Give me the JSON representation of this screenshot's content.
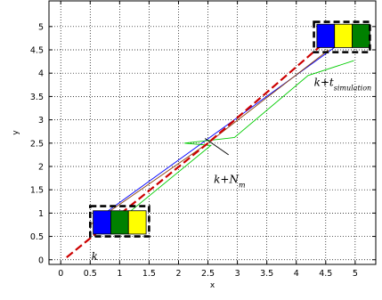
{
  "chart_data": {
    "type": "line",
    "xlabel": "x",
    "ylabel": "y",
    "xlim": [
      -0.2,
      5.35
    ],
    "ylim": [
      -0.1,
      5.55
    ],
    "x_ticks": [
      0,
      0.5,
      1,
      1.5,
      2,
      2.5,
      3,
      3.5,
      4,
      4.5,
      5
    ],
    "x_tick_labels": [
      "0",
      "0.5",
      "1",
      "1.5",
      "2",
      "2.5",
      "3",
      "3.5",
      "4",
      "4.5",
      "5"
    ],
    "y_ticks": [
      0,
      0.5,
      1,
      1.5,
      2,
      2.5,
      3,
      3.5,
      4,
      4.5,
      5
    ],
    "y_tick_labels": [
      "0",
      "0.5",
      "1",
      "1.5",
      "2",
      "2.5",
      "3",
      "3.5",
      "4",
      "4.5",
      "5"
    ],
    "grid": true,
    "series": [
      {
        "color": "#0000ff",
        "style": "solid",
        "points": [
          [
            0.75,
            1.0
          ],
          [
            2.4,
            2.5
          ],
          [
            4.9,
            4.78
          ]
        ]
      },
      {
        "color": "#00cc00",
        "style": "solid",
        "points": [
          [
            1.0,
            0.85
          ],
          [
            2.55,
            2.45
          ],
          [
            2.1,
            2.5
          ],
          [
            2.95,
            2.62
          ],
          [
            4.2,
            3.95
          ],
          [
            4.98,
            4.27
          ]
        ]
      },
      {
        "color": "#8b4513",
        "style": "solid",
        "points": [
          [
            0.5,
            0.75
          ],
          [
            2.5,
            2.5
          ],
          [
            4.55,
            4.5
          ]
        ]
      },
      {
        "color": "#cc0000",
        "style": "dashed",
        "points": [
          [
            0.1,
            0.05
          ],
          [
            2.5,
            2.5
          ],
          [
            4.75,
            4.95
          ]
        ]
      }
    ],
    "boxes": [
      {
        "x_range": [
          0.5,
          1.5
        ],
        "y_range": [
          0.5,
          1.15
        ],
        "blocks": [
          {
            "color": "#0000ff",
            "x_range": [
              0.55,
              0.85
            ],
            "y_range": [
              0.55,
              1.05
            ]
          },
          {
            "color": "#008000",
            "x_range": [
              0.85,
              1.15
            ],
            "y_range": [
              0.55,
              1.05
            ]
          },
          {
            "color": "#ffff00",
            "x_range": [
              1.15,
              1.45
            ],
            "y_range": [
              0.55,
              1.05
            ]
          }
        ]
      },
      {
        "x_range": [
          4.3,
          5.25
        ],
        "y_range": [
          4.45,
          5.1
        ],
        "blocks": [
          {
            "color": "#0000ff",
            "x_range": [
              4.35,
              4.65
            ],
            "y_range": [
              4.55,
              5.05
            ]
          },
          {
            "color": "#ffff00",
            "x_range": [
              4.65,
              4.95
            ],
            "y_range": [
              4.55,
              5.05
            ]
          },
          {
            "color": "#008000",
            "x_range": [
              4.95,
              5.25
            ],
            "y_range": [
              4.55,
              5.05
            ]
          }
        ]
      }
    ],
    "pointer_line": {
      "color": "#000000",
      "points": [
        [
          2.45,
          2.6
        ],
        [
          2.85,
          2.25
        ]
      ]
    },
    "annotations": [
      {
        "text": "k",
        "x": 0.52,
        "y": 0.0
      },
      {
        "text": "k+N",
        "subscript": "m",
        "x": 2.6,
        "y": 1.65
      },
      {
        "text": "k+t",
        "subscript": "simulation",
        "x": 4.3,
        "y": 3.73
      }
    ]
  }
}
